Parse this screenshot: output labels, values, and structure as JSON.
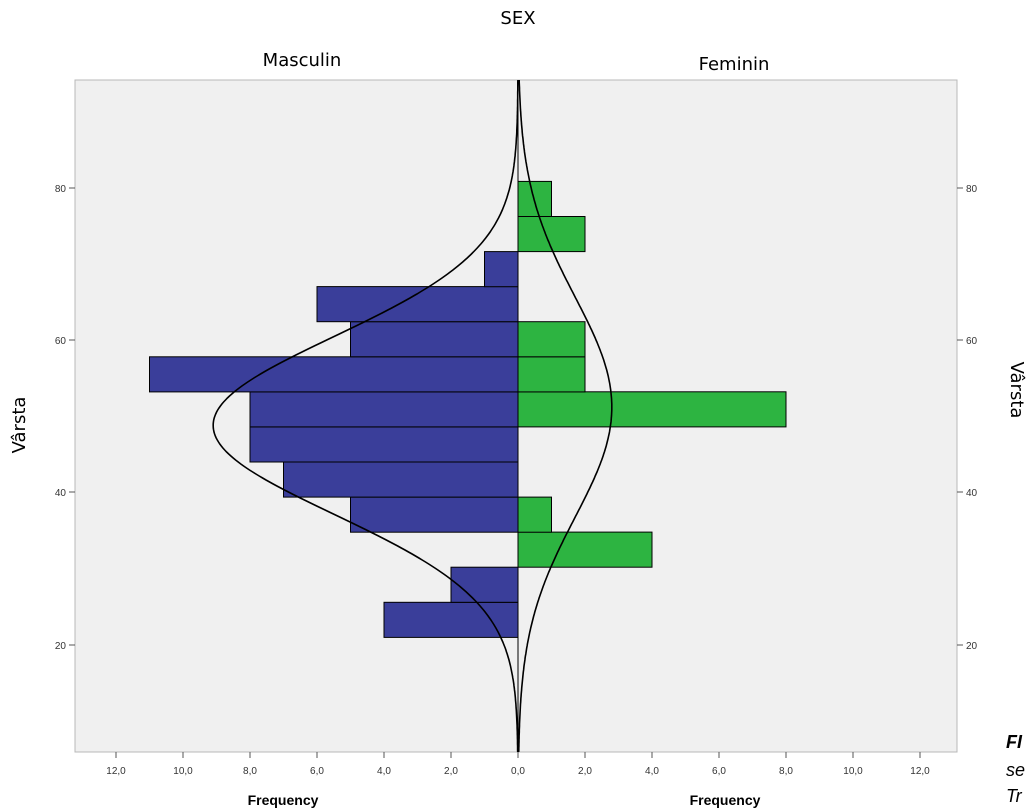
{
  "chart_data": {
    "type": "bar",
    "orientation": "horizontal",
    "layout": "population-pyramid",
    "title": "SEX",
    "ylabel_left": "Vârsta",
    "ylabel_right": "Vârsta",
    "xlabel": "Frequency",
    "y_range": [
      5,
      75
    ],
    "x_range": [
      0,
      12
    ],
    "y_ticks": [
      20,
      40,
      60,
      80
    ],
    "x_ticks": [
      0,
      2,
      4,
      6,
      8,
      10,
      12
    ],
    "x_tick_labels": [
      "0,0",
      "2,0",
      "4,0",
      "6,0",
      "8,0",
      "10,0",
      "12,0"
    ],
    "grid": false,
    "series": [
      {
        "name": "Masculin",
        "side": "left",
        "color": "#3a3e9a",
        "bins": [
          {
            "y0": 21,
            "y1": 25.6,
            "value": 4
          },
          {
            "y0": 25.6,
            "y1": 30.2,
            "value": 2
          },
          {
            "y0": 34.8,
            "y1": 39.4,
            "value": 5
          },
          {
            "y0": 39.4,
            "y1": 44,
            "value": 7
          },
          {
            "y0": 44,
            "y1": 48.6,
            "value": 8
          },
          {
            "y0": 48.6,
            "y1": 53.2,
            "value": 8
          },
          {
            "y0": 53.2,
            "y1": 57.8,
            "value": 11
          },
          {
            "y0": 57.8,
            "y1": 62.4,
            "value": 5
          },
          {
            "y0": 62.4,
            "y1": 67,
            "value": 6
          },
          {
            "y0": 67,
            "y1": 71.6,
            "value": 1
          }
        ],
        "normal_curve": {
          "mean": 48.8,
          "sd": 11.6,
          "peak": 9.1
        }
      },
      {
        "name": "Feminin",
        "side": "right",
        "color": "#2db441",
        "bins": [
          {
            "y0": 30.2,
            "y1": 34.8,
            "value": 4
          },
          {
            "y0": 34.8,
            "y1": 39.4,
            "value": 1
          },
          {
            "y0": 48.6,
            "y1": 53.2,
            "value": 8
          },
          {
            "y0": 53.2,
            "y1": 57.8,
            "value": 2
          },
          {
            "y0": 57.8,
            "y1": 62.4,
            "value": 2
          },
          {
            "y0": 71.6,
            "y1": 76.2,
            "value": 2
          },
          {
            "y0": 76.2,
            "y1": 80.8,
            "value": 1
          }
        ],
        "normal_curve": {
          "mean": 51.2,
          "sd": 14.5,
          "peak": 2.8
        }
      }
    ]
  },
  "caption": {
    "line1": "FI",
    "line2": "se",
    "line3": "Tr"
  }
}
